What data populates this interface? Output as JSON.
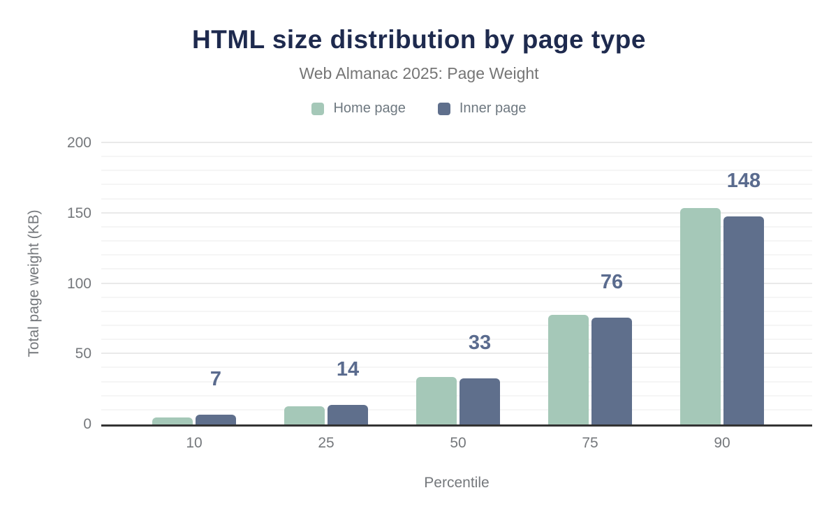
{
  "chart_data": {
    "type": "bar",
    "title": "HTML size distribution by page type",
    "subtitle": "Web Almanac 2025: Page Weight",
    "xlabel": "Percentile",
    "ylabel": "Total page weight (KB)",
    "categories": [
      "10",
      "25",
      "50",
      "75",
      "90"
    ],
    "series": [
      {
        "name": "Home page",
        "color": "#a5c8b8",
        "values": [
          5,
          13,
          34,
          78,
          154
        ]
      },
      {
        "name": "Inner page",
        "color": "#5f6f8c",
        "values": [
          7,
          14,
          33,
          76,
          148
        ]
      }
    ],
    "value_labels": {
      "labeled_series": "Inner page",
      "values": [
        "7",
        "14",
        "33",
        "76",
        "148"
      ]
    },
    "ylim": [
      0,
      200
    ],
    "yticks": [
      0,
      50,
      100,
      150,
      200
    ],
    "minor_gridline_step": 10,
    "grid": "horizontal",
    "legend_position": "top",
    "colors": {
      "title": "#1e2a4e",
      "subtitle": "#757575",
      "legend_text": "#6e7880",
      "axis_text": "#75787c",
      "data_label": "#5a6b8e",
      "grid_major": "#e9e9e9",
      "grid_minor": "#f5f5f5",
      "axis_line": "#333333",
      "home_page_bar": "#a5c8b8",
      "inner_page_bar": "#5f6f8c"
    }
  }
}
